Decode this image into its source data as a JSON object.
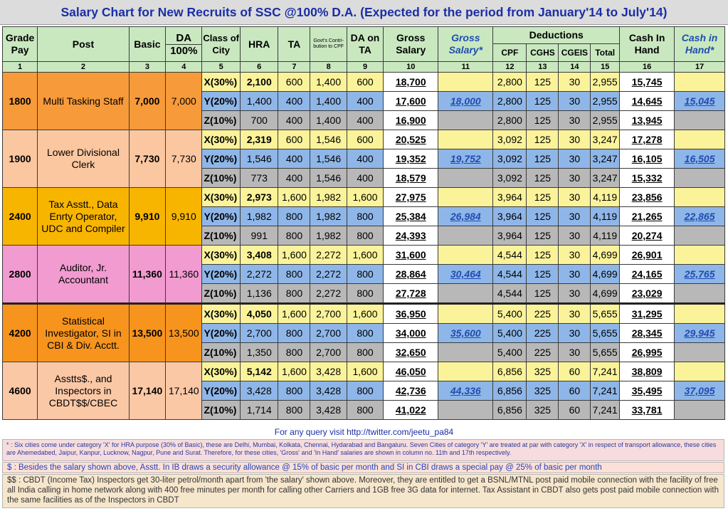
{
  "title": "Salary Chart for New Recruits of SSC @100% D.A. (Expected for the period from January'14 to July'14)",
  "headers": {
    "grade_pay": "Grade Pay",
    "post": "Post",
    "basic": "Basic",
    "da": "DA",
    "da_pct": "100%",
    "class_of_city": "Class of City",
    "hra": "HRA",
    "ta": "TA",
    "govt_contrib": "Govt's Contri- bution to CPF",
    "da_on_ta": "DA on TA",
    "gross_salary": "Gross Salary",
    "gross_salary_star": "Gross Salary*",
    "deductions": "Deductions",
    "cpf": "CPF",
    "cghs": "CGHS",
    "cgeis": "CGEIS",
    "total": "Total",
    "cash_in_hand": "Cash In Hand",
    "cash_in_hand_star": "Cash in Hand*"
  },
  "col_numbers": [
    "1",
    "2",
    "3",
    "4",
    "5",
    "6",
    "7",
    "8",
    "9",
    "10",
    "11",
    "12",
    "13",
    "14",
    "15",
    "16",
    "17"
  ],
  "groups": [
    {
      "grade_pay": "1800",
      "post": "Multi Tasking Staff",
      "basic": "7,000",
      "da": "7,000",
      "gross_star": "18,000",
      "cash_star": "15,045",
      "rows": [
        {
          "cls": "X(30%)",
          "hra": "2,100",
          "ta": "600",
          "govt": "1,400",
          "da_ta": "600",
          "gross": "18,700",
          "cpf": "2,800",
          "cghs": "125",
          "cgeis": "30",
          "total": "2,955",
          "cash": "15,745"
        },
        {
          "cls": "Y(20%)",
          "hra": "1,400",
          "ta": "400",
          "govt": "1,400",
          "da_ta": "400",
          "gross": "17,600",
          "cpf": "2,800",
          "cghs": "125",
          "cgeis": "30",
          "total": "2,955",
          "cash": "14,645"
        },
        {
          "cls": "Z(10%)",
          "hra": "700",
          "ta": "400",
          "govt": "1,400",
          "da_ta": "400",
          "gross": "16,900",
          "cpf": "2,800",
          "cghs": "125",
          "cgeis": "30",
          "total": "2,955",
          "cash": "13,945"
        }
      ]
    },
    {
      "grade_pay": "1900",
      "post": "Lower Divisional Clerk",
      "basic": "7,730",
      "da": "7,730",
      "gross_star": "19,752",
      "cash_star": "16,505",
      "rows": [
        {
          "cls": "X(30%)",
          "hra": "2,319",
          "ta": "600",
          "govt": "1,546",
          "da_ta": "600",
          "gross": "20,525",
          "cpf": "3,092",
          "cghs": "125",
          "cgeis": "30",
          "total": "3,247",
          "cash": "17,278"
        },
        {
          "cls": "Y(20%)",
          "hra": "1,546",
          "ta": "400",
          "govt": "1,546",
          "da_ta": "400",
          "gross": "19,352",
          "cpf": "3,092",
          "cghs": "125",
          "cgeis": "30",
          "total": "3,247",
          "cash": "16,105"
        },
        {
          "cls": "Z(10%)",
          "hra": "773",
          "ta": "400",
          "govt": "1,546",
          "da_ta": "400",
          "gross": "18,579",
          "cpf": "3,092",
          "cghs": "125",
          "cgeis": "30",
          "total": "3,247",
          "cash": "15,332"
        }
      ]
    },
    {
      "grade_pay": "2400",
      "post": "Tax Asstt., Data Enrty Operator, UDC and Compiler",
      "basic": "9,910",
      "da": "9,910",
      "gross_star": "26,984",
      "cash_star": "22,865",
      "rows": [
        {
          "cls": "X(30%)",
          "hra": "2,973",
          "ta": "1,600",
          "govt": "1,982",
          "da_ta": "1,600",
          "gross": "27,975",
          "cpf": "3,964",
          "cghs": "125",
          "cgeis": "30",
          "total": "4,119",
          "cash": "23,856"
        },
        {
          "cls": "Y(20%)",
          "hra": "1,982",
          "ta": "800",
          "govt": "1,982",
          "da_ta": "800",
          "gross": "25,384",
          "cpf": "3,964",
          "cghs": "125",
          "cgeis": "30",
          "total": "4,119",
          "cash": "21,265"
        },
        {
          "cls": "Z(10%)",
          "hra": "991",
          "ta": "800",
          "govt": "1,982",
          "da_ta": "800",
          "gross": "24,393",
          "cpf": "3,964",
          "cghs": "125",
          "cgeis": "30",
          "total": "4,119",
          "cash": "20,274"
        }
      ]
    },
    {
      "grade_pay": "2800",
      "post": "Auditor, Jr. Accountant",
      "basic": "11,360",
      "da": "11,360",
      "gross_star": "30,464",
      "cash_star": "25,765",
      "rows": [
        {
          "cls": "X(30%)",
          "hra": "3,408",
          "ta": "1,600",
          "govt": "2,272",
          "da_ta": "1,600",
          "gross": "31,600",
          "cpf": "4,544",
          "cghs": "125",
          "cgeis": "30",
          "total": "4,699",
          "cash": "26,901"
        },
        {
          "cls": "Y(20%)",
          "hra": "2,272",
          "ta": "800",
          "govt": "2,272",
          "da_ta": "800",
          "gross": "28,864",
          "cpf": "4,544",
          "cghs": "125",
          "cgeis": "30",
          "total": "4,699",
          "cash": "24,165"
        },
        {
          "cls": "Z(10%)",
          "hra": "1,136",
          "ta": "800",
          "govt": "2,272",
          "da_ta": "800",
          "gross": "27,728",
          "cpf": "4,544",
          "cghs": "125",
          "cgeis": "30",
          "total": "4,699",
          "cash": "23,029"
        }
      ]
    },
    {
      "grade_pay": "4200",
      "post": "Statistical Investigator, SI in CBI & Div. Acctt.",
      "basic": "13,500",
      "da": "13,500",
      "gross_star": "35,600",
      "cash_star": "29,945",
      "rows": [
        {
          "cls": "X(30%)",
          "hra": "4,050",
          "ta": "1,600",
          "govt": "2,700",
          "da_ta": "1,600",
          "gross": "36,950",
          "cpf": "5,400",
          "cghs": "225",
          "cgeis": "30",
          "total": "5,655",
          "cash": "31,295"
        },
        {
          "cls": "Y(20%)",
          "hra": "2,700",
          "ta": "800",
          "govt": "2,700",
          "da_ta": "800",
          "gross": "34,000",
          "cpf": "5,400",
          "cghs": "225",
          "cgeis": "30",
          "total": "5,655",
          "cash": "28,345"
        },
        {
          "cls": "Z(10%)",
          "hra": "1,350",
          "ta": "800",
          "govt": "2,700",
          "da_ta": "800",
          "gross": "32,650",
          "cpf": "5,400",
          "cghs": "225",
          "cgeis": "30",
          "total": "5,655",
          "cash": "26,995"
        }
      ]
    },
    {
      "grade_pay": "4600",
      "post": "Asstts$., and Inspectors in CBDT$$/CBEC",
      "basic": "17,140",
      "da": "17,140",
      "gross_star": "44,336",
      "cash_star": "37,095",
      "rows": [
        {
          "cls": "X(30%)",
          "hra": "5,142",
          "ta": "1,600",
          "govt": "3,428",
          "da_ta": "1,600",
          "gross": "46,050",
          "cpf": "6,856",
          "cghs": "325",
          "cgeis": "60",
          "total": "7,241",
          "cash": "38,809"
        },
        {
          "cls": "Y(20%)",
          "hra": "3,428",
          "ta": "800",
          "govt": "3,428",
          "da_ta": "800",
          "gross": "42,736",
          "cpf": "6,856",
          "cghs": "325",
          "cgeis": "60",
          "total": "7,241",
          "cash": "35,495"
        },
        {
          "cls": "Z(10%)",
          "hra": "1,714",
          "ta": "800",
          "govt": "3,428",
          "da_ta": "800",
          "gross": "41,022",
          "cpf": "6,856",
          "cghs": "325",
          "cgeis": "60",
          "total": "7,241",
          "cash": "33,781"
        }
      ]
    }
  ],
  "footer": {
    "query_link": "For any query visit http://twitter.com/jeetu_pa84",
    "note_star": "* : Six cities come under category 'X' for HRA purpose (30% of Basic), these are Delhi, Mumbai, Kolkata, Chennai, Hydarabad and Bangaluru. Seven Cities of category 'Y' are treated at par with category 'X' in respect of transport allowance, these cities are Ahemedabed, Jaipur, Kanpur, Lucknow, Nagpur, Pune and Surat. Therefore, for these cities, 'Gross' and 'In Hand' salaries are shown in column no. 11th and 17th respectively.",
    "note_dollar": "$ : Besides the salary shown above, Asstt. In IB draws a security allowance @ 15% of basic per month and SI in CBI draws a special pay @ 25% of basic per month",
    "note_double_dollar": "$$ : CBDT (Income Tax) Inspectors get 30-liter petrol/month apart from 'the salary' shown above. Moreover, they are entitled to get a BSNL/MTNL post paid mobile connection with the facility of free all India calling in home network along with 400 free minutes per month for calling other Carriers and 1GB free 3G data for internet. Tax Assistant in CBDT also gets post paid mobile connection with the same facilities as of the Inspectors in CBDT"
  },
  "colors": {
    "header_green": "#c9e8c0",
    "x_row": "#fbf39a",
    "y_row": "#8fb6e8",
    "z_row": "#b8b8b8",
    "title_blue": "#1a2ea8"
  }
}
